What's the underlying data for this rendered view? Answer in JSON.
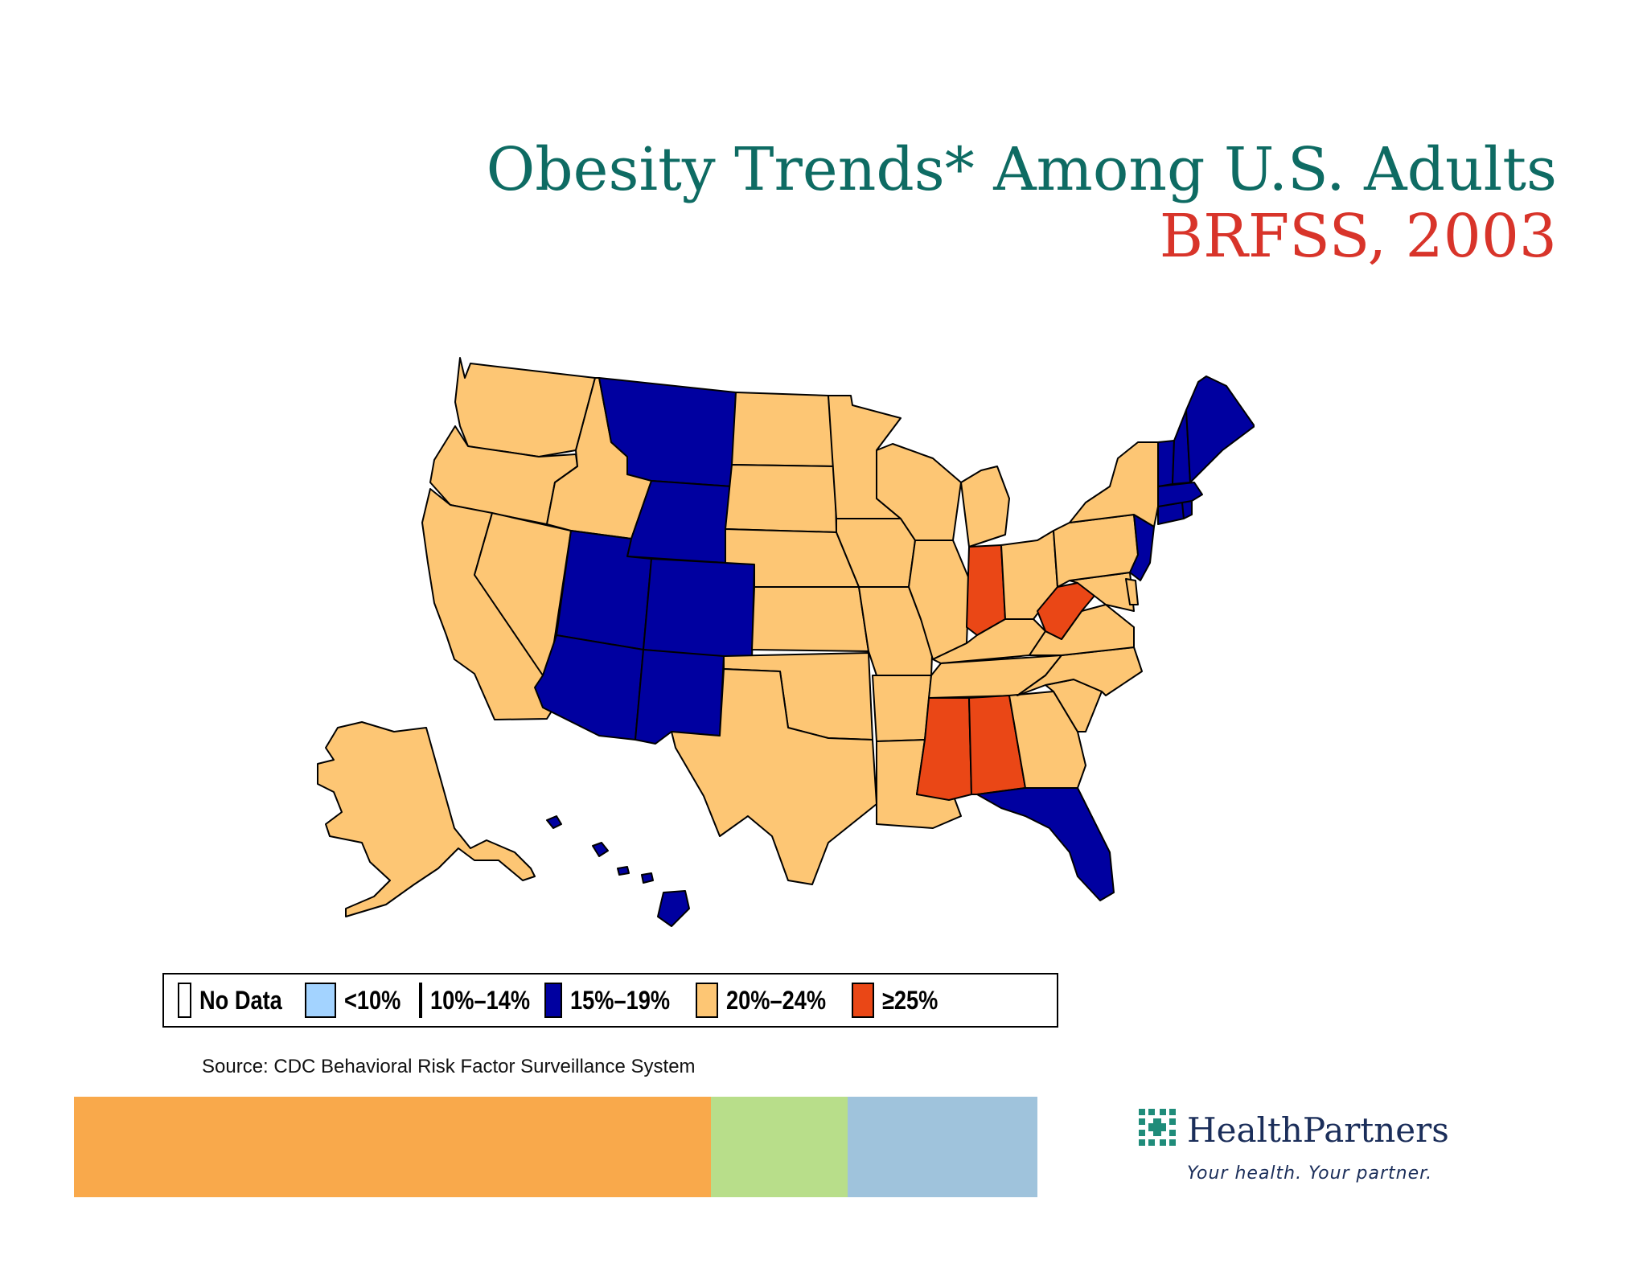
{
  "title": {
    "line1": "Obesity Trends* Among U.S. Adults",
    "line2": "BRFSS, 2003"
  },
  "colors": {
    "no_data": "#ffffff",
    "lt10": "#a3d3ff",
    "10_14": "#6699ff",
    "15_19": "#0000a0",
    "20_24": "#fdc674",
    "ge25": "#ea4716"
  },
  "legend": [
    {
      "label": "No Data",
      "class": "no_data"
    },
    {
      "label": "<10%",
      "class": "lt10"
    },
    {
      "label": "10%–14%",
      "class": "10_14"
    },
    {
      "label": "15%–19%",
      "class": "15_19"
    },
    {
      "label": "20%–24%",
      "class": "20_24"
    },
    {
      "label": "≥25%",
      "class": "ge25"
    }
  ],
  "map": {
    "states": [
      {
        "name": "WA",
        "class": "20_24"
      },
      {
        "name": "OR",
        "class": "20_24"
      },
      {
        "name": "CA",
        "class": "20_24"
      },
      {
        "name": "NV",
        "class": "20_24"
      },
      {
        "name": "ID",
        "class": "20_24"
      },
      {
        "name": "MT",
        "class": "15_19"
      },
      {
        "name": "WY",
        "class": "15_19"
      },
      {
        "name": "UT",
        "class": "15_19"
      },
      {
        "name": "CO",
        "class": "15_19"
      },
      {
        "name": "AZ",
        "class": "15_19"
      },
      {
        "name": "NM",
        "class": "15_19"
      },
      {
        "name": "ND",
        "class": "20_24"
      },
      {
        "name": "SD",
        "class": "20_24"
      },
      {
        "name": "NE",
        "class": "20_24"
      },
      {
        "name": "KS",
        "class": "20_24"
      },
      {
        "name": "OK",
        "class": "20_24"
      },
      {
        "name": "TX",
        "class": "20_24"
      },
      {
        "name": "MN",
        "class": "20_24"
      },
      {
        "name": "IA",
        "class": "20_24"
      },
      {
        "name": "MO",
        "class": "20_24"
      },
      {
        "name": "AR",
        "class": "20_24"
      },
      {
        "name": "LA",
        "class": "20_24"
      },
      {
        "name": "WI",
        "class": "20_24"
      },
      {
        "name": "IL",
        "class": "20_24"
      },
      {
        "name": "MI",
        "class": "20_24"
      },
      {
        "name": "IN",
        "class": "ge25"
      },
      {
        "name": "OH",
        "class": "20_24"
      },
      {
        "name": "KY",
        "class": "20_24"
      },
      {
        "name": "TN",
        "class": "20_24"
      },
      {
        "name": "MS",
        "class": "ge25"
      },
      {
        "name": "AL",
        "class": "ge25"
      },
      {
        "name": "GA",
        "class": "20_24"
      },
      {
        "name": "FL",
        "class": "15_19"
      },
      {
        "name": "SC",
        "class": "20_24"
      },
      {
        "name": "NC",
        "class": "20_24"
      },
      {
        "name": "VA",
        "class": "20_24"
      },
      {
        "name": "WV",
        "class": "ge25"
      },
      {
        "name": "MD",
        "class": "20_24"
      },
      {
        "name": "DE",
        "class": "20_24"
      },
      {
        "name": "PA",
        "class": "20_24"
      },
      {
        "name": "NJ",
        "class": "15_19"
      },
      {
        "name": "NY",
        "class": "20_24"
      },
      {
        "name": "CT",
        "class": "15_19"
      },
      {
        "name": "RI",
        "class": "15_19"
      },
      {
        "name": "MA",
        "class": "15_19"
      },
      {
        "name": "VT",
        "class": "15_19"
      },
      {
        "name": "NH",
        "class": "15_19"
      },
      {
        "name": "ME",
        "class": "15_19"
      },
      {
        "name": "AK",
        "class": "20_24"
      },
      {
        "name": "HI",
        "class": "15_19"
      }
    ]
  },
  "source": "Source: CDC Behavioral Risk Factor Surveillance  System",
  "bottom_bar_colors": [
    "#f9a94b",
    "#b8de8a",
    "#9fc3dc"
  ],
  "logo": {
    "name": "HealthPartners",
    "tagline": "Your health. Your partner."
  }
}
